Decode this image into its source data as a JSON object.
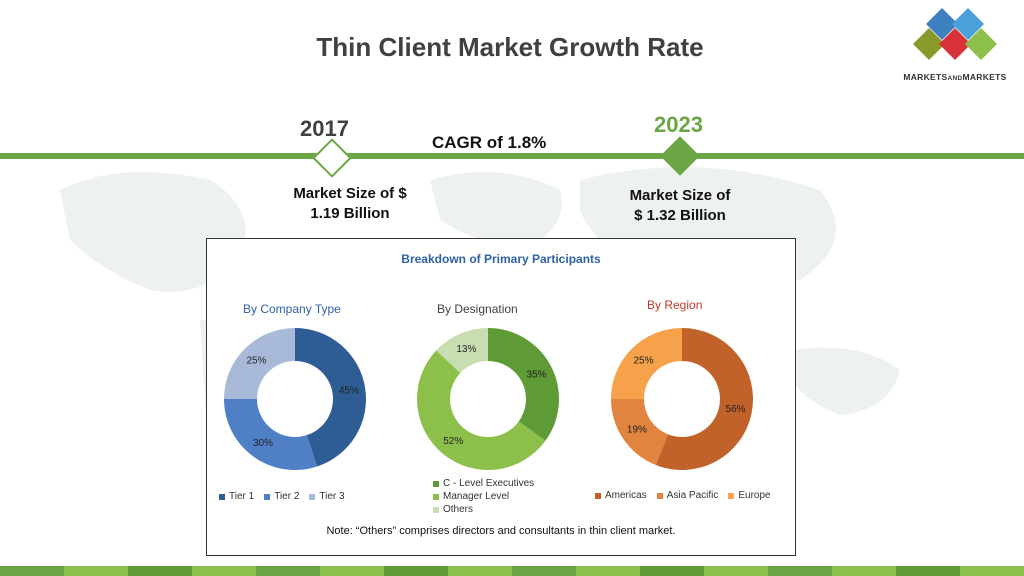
{
  "header": {
    "title": "Thin Client Market Growth Rate"
  },
  "logo": {
    "text_main": "MARKETS",
    "text_small": "AND",
    "text_end": "MARKETS"
  },
  "timeline": {
    "year_start": "2017",
    "year_end": "2023",
    "cagr": "CAGR of 1.8%",
    "market_start_line1": "Market Size of $",
    "market_start_line2": "1.19 Billion",
    "market_end_line1": "Market Size of",
    "market_end_line2": "$ 1.32 Billion"
  },
  "colors": {
    "accent_green": "#6aa744"
  },
  "chart_data": [
    {
      "type": "pie",
      "panel_title": "Breakdown of Primary Participants",
      "title": "By Company Type",
      "categories": [
        "Tier 1",
        "Tier 2",
        "Tier 3"
      ],
      "values": [
        45,
        30,
        25
      ],
      "labels": [
        "45%",
        "30%",
        "25%"
      ],
      "colors": [
        "#2e5c94",
        "#4f7fc4",
        "#a9b9d8"
      ],
      "legend": "bottom"
    },
    {
      "type": "pie",
      "title": "By Designation",
      "categories": [
        "C - Level Executives",
        "Manager Level",
        "Others"
      ],
      "values": [
        35,
        52,
        13
      ],
      "labels": [
        "35%",
        "52%",
        "13%"
      ],
      "colors": [
        "#5e9a35",
        "#8cc04a",
        "#c9deb0"
      ],
      "legend": "bottom"
    },
    {
      "type": "pie",
      "title": "By Region",
      "categories": [
        "Americas",
        "Asia Pacific",
        "Europe"
      ],
      "values": [
        56,
        19,
        25
      ],
      "labels": [
        "56%",
        "19%",
        "25%"
      ],
      "colors": [
        "#c0622a",
        "#e0843f",
        "#f5a24a"
      ],
      "legend": "bottom"
    }
  ],
  "note": "Note: “Others” comprises directors and consultants in thin client market."
}
